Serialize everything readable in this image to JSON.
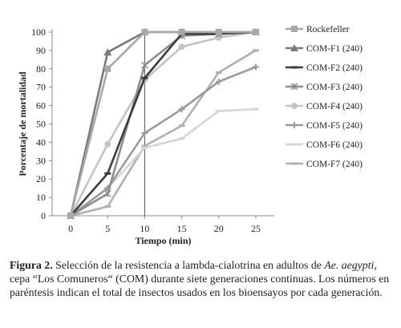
{
  "chart_data": {
    "type": "line",
    "xlabel": "Tiempo (min)",
    "ylabel": "Porcentaje de mortalidad",
    "x": [
      0,
      5,
      10,
      15,
      20,
      25
    ],
    "xlim": [
      0,
      25
    ],
    "ylim": [
      0,
      100
    ],
    "yticks": [
      0,
      10,
      20,
      30,
      40,
      50,
      60,
      70,
      80,
      90,
      100
    ],
    "reference_line_x": 10,
    "legend_position": "right",
    "series": [
      {
        "name": "Rockefeller",
        "values": [
          0,
          80,
          100,
          100,
          100,
          100
        ],
        "color": "#a8a8a8",
        "marker": "square"
      },
      {
        "name": "COM-F1 (240)",
        "values": [
          0,
          89,
          100,
          100,
          100,
          100
        ],
        "color": "#7a7a7a",
        "marker": "triangle"
      },
      {
        "name": "COM-F2 (240)",
        "values": [
          0,
          23,
          75,
          99,
          99,
          100
        ],
        "color": "#3c3c3c",
        "marker": "dash"
      },
      {
        "name": "COM-F3 (240)",
        "values": [
          0,
          12,
          82,
          98,
          99,
          100
        ],
        "color": "#8e8e8e",
        "marker": "star"
      },
      {
        "name": "COM-F4 (240)",
        "values": [
          0,
          39,
          74,
          92,
          97,
          100
        ],
        "color": "#c4c4c4",
        "marker": "circle"
      },
      {
        "name": "COM-F5 (240)",
        "values": [
          0,
          15,
          45,
          58,
          73,
          81
        ],
        "color": "#9a9a9a",
        "marker": "plus"
      },
      {
        "name": "COM-F6 (240)",
        "values": [
          0,
          15,
          37,
          42,
          57,
          58
        ],
        "color": "#d6d6d6",
        "marker": "dash"
      },
      {
        "name": "COM-F7 (240)",
        "values": [
          0,
          5,
          38,
          49,
          78,
          90
        ],
        "color": "#b0b0b0",
        "marker": "dash"
      }
    ]
  },
  "caption": {
    "label": "Figura 2.",
    "part1": " Selección de la resistencia a lambda-cialotrina en adultos de ",
    "species": "Ae. aegypti",
    "part2": ", cepa “Los Comuneros“ (COM) durante siete generaciones continuas. Los números en paréntesis indican el total de insectos usados en los bioensayos por cada generación."
  }
}
